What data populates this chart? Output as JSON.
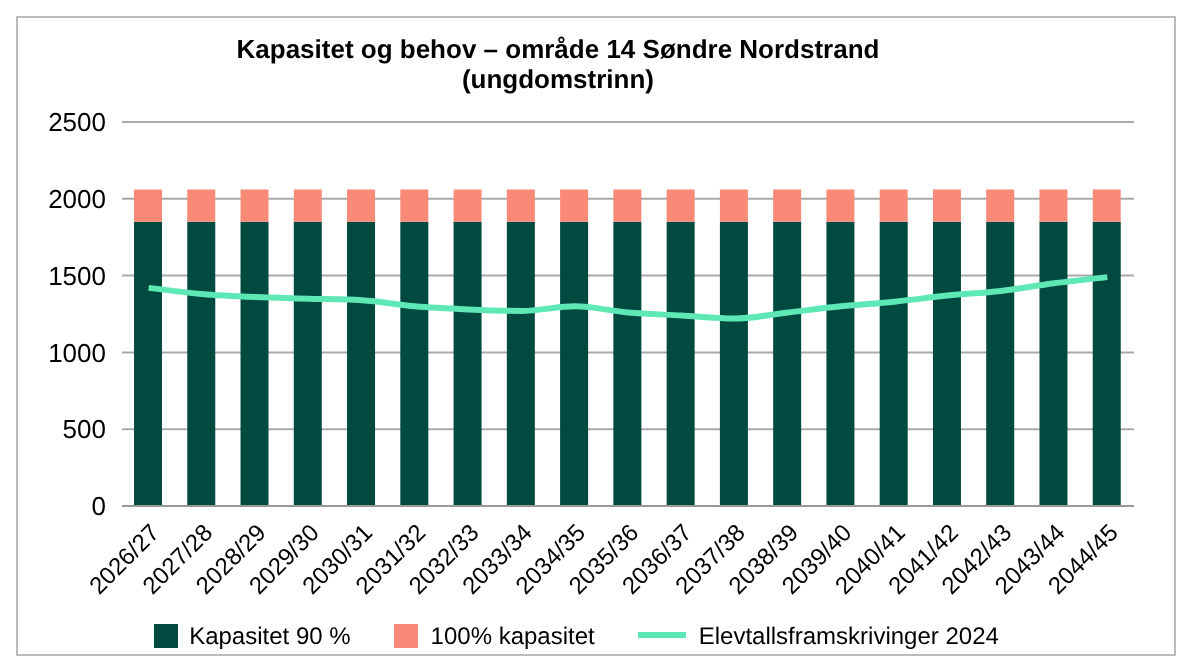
{
  "chart_data": {
    "type": "bar",
    "title": "Kapasitet og behov – område 14 Søndre Nordstrand\n(ungdomstrinn)",
    "stacked": true,
    "categories": [
      "2026/27",
      "2027/28",
      "2028/29",
      "2029/30",
      "2030/31",
      "2031/32",
      "2032/33",
      "2033/34",
      "2034/35",
      "2035/36",
      "2036/37",
      "2037/38",
      "2038/39",
      "2039/40",
      "2040/41",
      "2041/42",
      "2042/43",
      "2043/44",
      "2044/45"
    ],
    "series": [
      {
        "name": "Kapasitet 90 %",
        "color": "#004a3f",
        "values": [
          1850,
          1850,
          1850,
          1850,
          1850,
          1850,
          1850,
          1850,
          1850,
          1850,
          1850,
          1850,
          1850,
          1850,
          1850,
          1850,
          1850,
          1850,
          1850
        ]
      },
      {
        "name": "100% kapasitet",
        "color": "#fa8a78",
        "values": [
          210,
          210,
          210,
          210,
          210,
          210,
          210,
          210,
          210,
          210,
          210,
          210,
          210,
          210,
          210,
          210,
          210,
          210,
          210
        ]
      },
      {
        "name": "Elevtallsframskrivinger 2024",
        "type": "line",
        "color": "#5ee8b5",
        "values": [
          1420,
          1380,
          1360,
          1350,
          1340,
          1300,
          1280,
          1270,
          1300,
          1260,
          1240,
          1220,
          1260,
          1300,
          1330,
          1370,
          1400,
          1450,
          1490
        ]
      }
    ],
    "ylim": [
      0,
      2500
    ],
    "yticks": [
      0,
      500,
      1000,
      1500,
      2000,
      2500
    ],
    "grid": "y",
    "legend": "bottom",
    "marker": "none"
  }
}
